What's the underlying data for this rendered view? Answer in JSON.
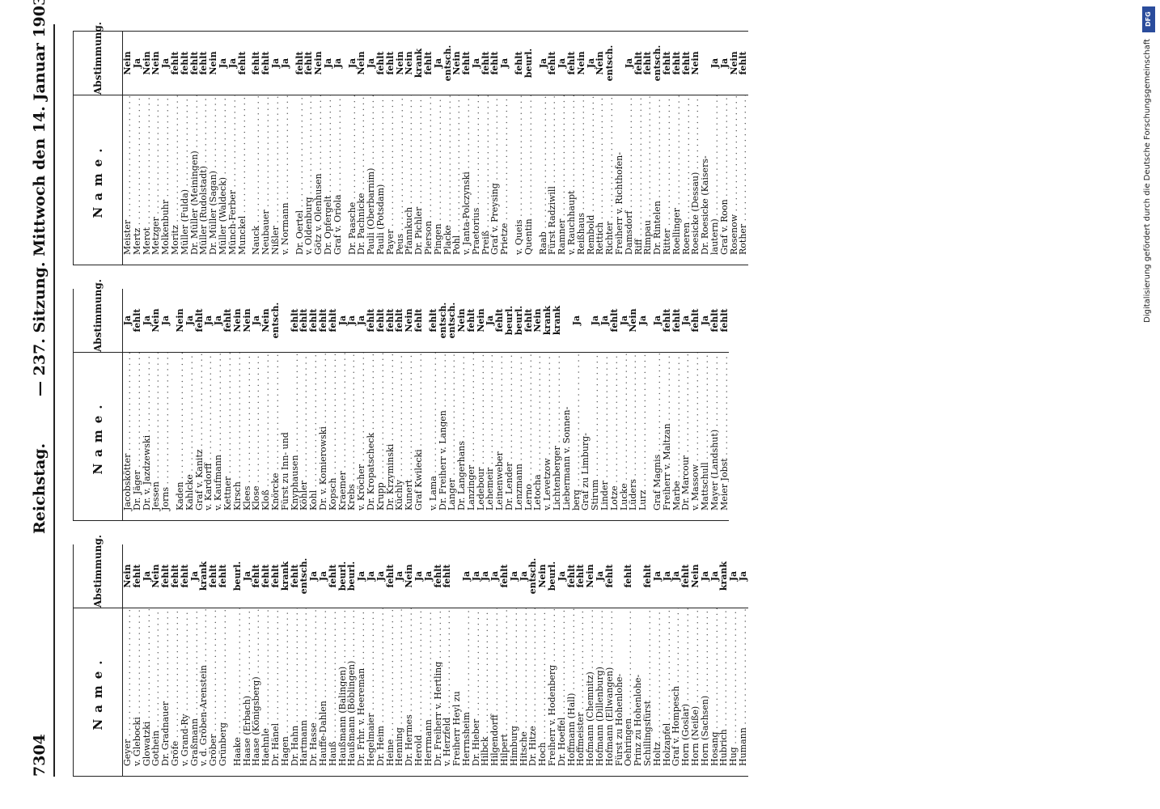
{
  "header": {
    "page_number": "7304",
    "title_left": "Reichstag.",
    "title_center": "— 237. Sitzung. Mittwoch den 14. Januar 1903."
  },
  "table_headers": {
    "name": "Name.",
    "vote": "Abstimmung."
  },
  "columns": [
    {
      "rows": [
        {
          "name": "Geyer",
          "vote": "Nein"
        },
        {
          "name": "v. Glebocki",
          "vote": "fehlt"
        },
        {
          "name": "Glowatzki",
          "vote": "Ja"
        },
        {
          "name": "Gothein",
          "vote": "Nein"
        },
        {
          "name": "Dr. Gradnauer",
          "vote": "fehlt"
        },
        {
          "name": "Gröfe",
          "vote": "fehlt"
        },
        {
          "name": "v. Grand-Ry",
          "vote": "fehlt"
        },
        {
          "name": "Graßmann",
          "vote": "Ja"
        },
        {
          "name": "v. d. Gröben-Arenstein",
          "vote": "krank"
        },
        {
          "name": "Gröber",
          "vote": "fehlt"
        },
        {
          "name": "Grünberg",
          "vote": "fehlt"
        },
        {
          "gap": true
        },
        {
          "name": "Haake",
          "vote": "beurl."
        },
        {
          "name": "Haase (Erbach)",
          "vote": "Ja"
        },
        {
          "name": "Haase (Königsberg)",
          "vote": "fehlt"
        },
        {
          "name": "Haehnle",
          "vote": "fehlt"
        },
        {
          "name": "Dr. Hänel",
          "vote": "fehlt"
        },
        {
          "name": "Hagen",
          "vote": "krank"
        },
        {
          "name": "Dr. Hahn",
          "vote": "fehlt"
        },
        {
          "name": "Hartmann",
          "vote": "entsch."
        },
        {
          "name": "Dr. Hasse",
          "vote": "Ja"
        },
        {
          "name": "Hauffe-Dahlen",
          "vote": "Ja"
        },
        {
          "name": "Hauß",
          "vote": "fehlt"
        },
        {
          "name": "Haußmann (Balingen)",
          "vote": "beurl."
        },
        {
          "name": "Haußmann (Böblingen)",
          "vote": "beurl."
        },
        {
          "name": "Dr. Frhr. v. Heereman",
          "vote": "Ja"
        },
        {
          "name": "Hegelmaier",
          "vote": "Ja"
        },
        {
          "name": "Dr. Heim",
          "vote": "Ja"
        },
        {
          "name": "Heine",
          "vote": "fehlt"
        },
        {
          "name": "Henning",
          "vote": "Ja"
        },
        {
          "name": "Dr. Hermes",
          "vote": "Nein"
        },
        {
          "name": "Herold",
          "vote": "Ja"
        },
        {
          "name": "Herrmann",
          "vote": "Ja"
        },
        {
          "name": "Dr. Freiherr v. Hertling",
          "vote": "fehlt"
        },
        {
          "name": "v. Herzfeld",
          "vote": "fehlt"
        },
        {
          "name": "Freiherr Heyl zu",
          "vote": ""
        },
        {
          "name": "Herrnsheim",
          "vote": "Ja"
        },
        {
          "name": "Dr. Hieber",
          "vote": "Ja"
        },
        {
          "name": "Hilbck",
          "vote": "Ja"
        },
        {
          "name": "Hilgendorff",
          "vote": "Ja"
        },
        {
          "name": "Hilpert",
          "vote": "fehlt"
        },
        {
          "name": "Himburg",
          "vote": "Ja"
        },
        {
          "name": "Hitsche",
          "vote": "Ja"
        },
        {
          "name": "Dr. Hitze",
          "vote": "entsch."
        },
        {
          "name": "Hoch",
          "vote": "Nein"
        },
        {
          "name": "Freiherr v. Hodenberg",
          "vote": "beurl."
        },
        {
          "name": "Dr. Hoeffel",
          "vote": "Ja"
        },
        {
          "name": "Hoffmann (Hall)",
          "vote": "fehlt"
        },
        {
          "name": "Hoffmeister",
          "vote": "fehlt"
        },
        {
          "name": "Hofmann (Chemnitz)",
          "vote": "Nein"
        },
        {
          "name": "Hofmann (Dillenburg)",
          "vote": "Ja"
        },
        {
          "name": "Hofmann (Ellwangen)",
          "vote": "fehlt"
        },
        {
          "name": "Fürst zu Hohenlohe-",
          "vote": ""
        },
        {
          "name": "Oehringen",
          "vote": "fehlt"
        },
        {
          "name": "Prinz zu Hohenlohe-",
          "vote": ""
        },
        {
          "name": "Schillingsfürst",
          "vote": "fehlt"
        },
        {
          "name": "Holtz",
          "vote": "Ja"
        },
        {
          "name": "Holzapfel",
          "vote": "Ja"
        },
        {
          "name": "Graf v. Hompesch",
          "vote": "Ja"
        },
        {
          "name": "Horn (Goslar)",
          "vote": "fehlt"
        },
        {
          "name": "Horn (Neiße)",
          "vote": "Nein"
        },
        {
          "name": "Horn (Sachsen)",
          "vote": "Ja"
        },
        {
          "name": "Hosang",
          "vote": "Ja"
        },
        {
          "name": "Hubrich",
          "vote": "krank"
        },
        {
          "name": "Hug",
          "vote": "Ja"
        },
        {
          "name": "Humann",
          "vote": "Ja"
        }
      ]
    },
    {
      "rows": [
        {
          "name": "Jacobskötter",
          "vote": "Ja"
        },
        {
          "name": "Dr. Jäger",
          "vote": "fehlt"
        },
        {
          "name": "Dr. v. Jazdzewski",
          "vote": "Ja"
        },
        {
          "name": "Jessen",
          "vote": "Nein"
        },
        {
          "name": "Jorns",
          "vote": "Ja"
        },
        {
          "gap": true
        },
        {
          "name": "Kaden",
          "vote": "Nein"
        },
        {
          "name": "Kahlcke",
          "vote": "Ja"
        },
        {
          "name": "Graf v. Kanitz",
          "vote": "fehlt"
        },
        {
          "name": "v. Kardorff",
          "vote": "Ja"
        },
        {
          "name": "v. Kaufmann",
          "vote": "Ja"
        },
        {
          "name": "Kettner",
          "vote": "fehlt"
        },
        {
          "name": "Kirsch",
          "vote": "Nein"
        },
        {
          "name": "Klees",
          "vote": "Nein"
        },
        {
          "name": "Klose",
          "vote": "Ja"
        },
        {
          "name": "Kloß",
          "vote": "Nein"
        },
        {
          "name": "Knörcke",
          "vote": "entsch."
        },
        {
          "name": "Fürst zu Inn- und",
          "vote": ""
        },
        {
          "name": "Knyphausen",
          "vote": "fehlt"
        },
        {
          "name": "Köhler",
          "vote": "fehlt"
        },
        {
          "name": "Kohl",
          "vote": "fehlt"
        },
        {
          "name": "Dr. v. Komierowski",
          "vote": "fehlt"
        },
        {
          "name": "Kopsch",
          "vote": "fehlt"
        },
        {
          "name": "Kraemer",
          "vote": "Ja"
        },
        {
          "name": "Krebs",
          "vote": "Ja"
        },
        {
          "name": "v. Kröcher",
          "vote": "Ja"
        },
        {
          "name": "Dr. Kropatscheck",
          "vote": "fehlt"
        },
        {
          "name": "Krupp",
          "vote": "fehlt"
        },
        {
          "name": "Dr. Krzyminski",
          "vote": "fehlt"
        },
        {
          "name": "Küchly",
          "vote": "fehlt"
        },
        {
          "name": "Kunert",
          "vote": "Nein"
        },
        {
          "name": "Graf Kwilecki",
          "vote": "fehlt"
        },
        {
          "gap": true
        },
        {
          "name": "v. Lama",
          "vote": "fehlt"
        },
        {
          "name": "Dr. Freiherr v. Langen",
          "vote": "entsch."
        },
        {
          "name": "Langer",
          "vote": "entsch."
        },
        {
          "name": "Dr. Langerhans",
          "vote": "Nein"
        },
        {
          "name": "Lanzinger",
          "vote": "fehlt"
        },
        {
          "name": "Ledebour",
          "vote": "Nein"
        },
        {
          "name": "Lehemeir",
          "vote": "Ja"
        },
        {
          "name": "Leinenweber",
          "vote": "fehlt"
        },
        {
          "name": "Dr. Lender",
          "vote": "beurl."
        },
        {
          "name": "Lenzmann",
          "vote": "beurl."
        },
        {
          "name": "Lerno",
          "vote": "fehlt"
        },
        {
          "name": "Letocha",
          "vote": "Nein"
        },
        {
          "name": "v. Levetzow",
          "vote": "krank"
        },
        {
          "name": "Lichtenberger",
          "vote": "krank"
        },
        {
          "name": "Liebermann v. Sonnen-",
          "vote": ""
        },
        {
          "name": "berg",
          "vote": "Ja"
        },
        {
          "name": "Graf zu Limburg-",
          "vote": ""
        },
        {
          "name": "Stirum",
          "vote": "Ja"
        },
        {
          "name": "Linder",
          "vote": "Ja"
        },
        {
          "name": "Lotze",
          "vote": "fehlt"
        },
        {
          "name": "Lucke",
          "vote": "Ja"
        },
        {
          "name": "Lüders",
          "vote": "Nein"
        },
        {
          "name": "Lurz",
          "vote": "Ja"
        },
        {
          "gap": true
        },
        {
          "name": "Graf Magnis",
          "vote": "Ja"
        },
        {
          "name": "Freiherr v. Maltzan",
          "vote": "fehlt"
        },
        {
          "name": "Marbe",
          "vote": "fehlt"
        },
        {
          "name": "Dr. Marcour",
          "vote": "Ja"
        },
        {
          "name": "v. Massow",
          "vote": "fehlt"
        },
        {
          "name": "Mattschull",
          "vote": "Ja"
        },
        {
          "name": "Mayer (Landshut)",
          "vote": "fehlt"
        },
        {
          "name": "Meier Jobst",
          "vote": "fehlt"
        }
      ]
    },
    {
      "rows": [
        {
          "name": "Meister",
          "vote": "Nein"
        },
        {
          "name": "Mertz",
          "vote": "Ja"
        },
        {
          "name": "Merot",
          "vote": "Nein"
        },
        {
          "name": "Metzger",
          "vote": "Nein"
        },
        {
          "name": "Molkenbuhr",
          "vote": "Ja"
        },
        {
          "name": "Moritz",
          "vote": "fehlt"
        },
        {
          "name": "Müller (Fulda)",
          "vote": "fehlt"
        },
        {
          "name": "Dr. Müller (Meiningen)",
          "vote": "fehlt"
        },
        {
          "name": "Müller (Rudolstadt)",
          "vote": "fehlt"
        },
        {
          "name": "Dr. Müller (Sagan)",
          "vote": "Nein"
        },
        {
          "name": "Müller (Waldeck)",
          "vote": "Ja"
        },
        {
          "name": "Münch-Ferber",
          "vote": "Ja"
        },
        {
          "name": "Munckel",
          "vote": "fehlt"
        },
        {
          "gap": true
        },
        {
          "name": "Nauck",
          "vote": "fehlt"
        },
        {
          "name": "Neubauer",
          "vote": "fehlt"
        },
        {
          "name": "Nißler",
          "vote": "Ja"
        },
        {
          "name": "v. Normann",
          "vote": "Ja"
        },
        {
          "gap": true
        },
        {
          "name": "Dr. Oertel",
          "vote": "fehlt"
        },
        {
          "name": "v. Oldenburg",
          "vote": "fehlt"
        },
        {
          "name": "Götz v. Olenhusen",
          "vote": "Nein"
        },
        {
          "name": "Dr. Opfergelt",
          "vote": "Ja"
        },
        {
          "name": "Graf v. Oriola",
          "vote": "Ja"
        },
        {
          "gap": true
        },
        {
          "name": "Dr. Paasche",
          "vote": "Ja"
        },
        {
          "name": "Dr. Pachnicke",
          "vote": "Nein"
        },
        {
          "name": "Pauli (Oberbarnim)",
          "vote": "Ja"
        },
        {
          "name": "Pauli (Potsdam)",
          "vote": "fehlt"
        },
        {
          "name": "Payer",
          "vote": "fehlt"
        },
        {
          "name": "Peus",
          "vote": "Nein"
        },
        {
          "name": "Pfannkuch",
          "vote": "Nein"
        },
        {
          "name": "Dr. Pichler",
          "vote": "krank"
        },
        {
          "name": "Pierson",
          "vote": "fehlt"
        },
        {
          "name": "Pingen",
          "vote": "Ja"
        },
        {
          "name": "Placke",
          "vote": "entsch."
        },
        {
          "name": "Pohl",
          "vote": "Nein"
        },
        {
          "name": "v. Jantа-Polczynski",
          "vote": "fehlt"
        },
        {
          "name": "Praetorius",
          "vote": "Ja"
        },
        {
          "name": "Preiß",
          "vote": "fehlt"
        },
        {
          "name": "Graf v. Preysing",
          "vote": "fehlt"
        },
        {
          "name": "Prietze",
          "vote": "Ja"
        },
        {
          "gap": true
        },
        {
          "name": "v. Queis",
          "vote": "fehlt"
        },
        {
          "name": "Quentin",
          "vote": "beurl."
        },
        {
          "gap": true
        },
        {
          "name": "Raab",
          "vote": "Ja"
        },
        {
          "name": "Fürst Radziwill",
          "vote": "fehlt"
        },
        {
          "name": "Ramner",
          "vote": "Ja"
        },
        {
          "name": "v. Rauchhaupt",
          "vote": "fehlt"
        },
        {
          "name": "Reißhaus",
          "vote": "Nein"
        },
        {
          "name": "Rembold",
          "vote": "Ja"
        },
        {
          "name": "Rettich",
          "vote": "Nein"
        },
        {
          "name": "Richter",
          "vote": "entsch."
        },
        {
          "name": "Freiherr v. Richthofen-",
          "vote": ""
        },
        {
          "name": "Damsdorf",
          "vote": "Ja"
        },
        {
          "name": "Riff",
          "vote": "fehlt"
        },
        {
          "name": "Rimpau",
          "vote": "fehlt"
        },
        {
          "name": "Dr. Rintelen",
          "vote": "entsch."
        },
        {
          "name": "Ritter",
          "vote": "fehlt"
        },
        {
          "name": "Roellinger",
          "vote": "fehlt"
        },
        {
          "name": "Roeren",
          "vote": "fehlt"
        },
        {
          "name": "Roesicke (Dessau)",
          "vote": "Nein"
        },
        {
          "name": "Dr. Roesicke (Kaisers-",
          "vote": ""
        },
        {
          "name": "lautern)",
          "vote": "Ja"
        },
        {
          "name": "Graf v. Roon",
          "vote": "Ja"
        },
        {
          "name": "Rosenow",
          "vote": "Nein"
        },
        {
          "name": "Rother",
          "vote": "fehlt"
        }
      ]
    }
  ],
  "watermark": {
    "logo": "DFG",
    "text": "Digitalisierung gefördert durch die Deutsche Forschungsgemeinschaft"
  }
}
